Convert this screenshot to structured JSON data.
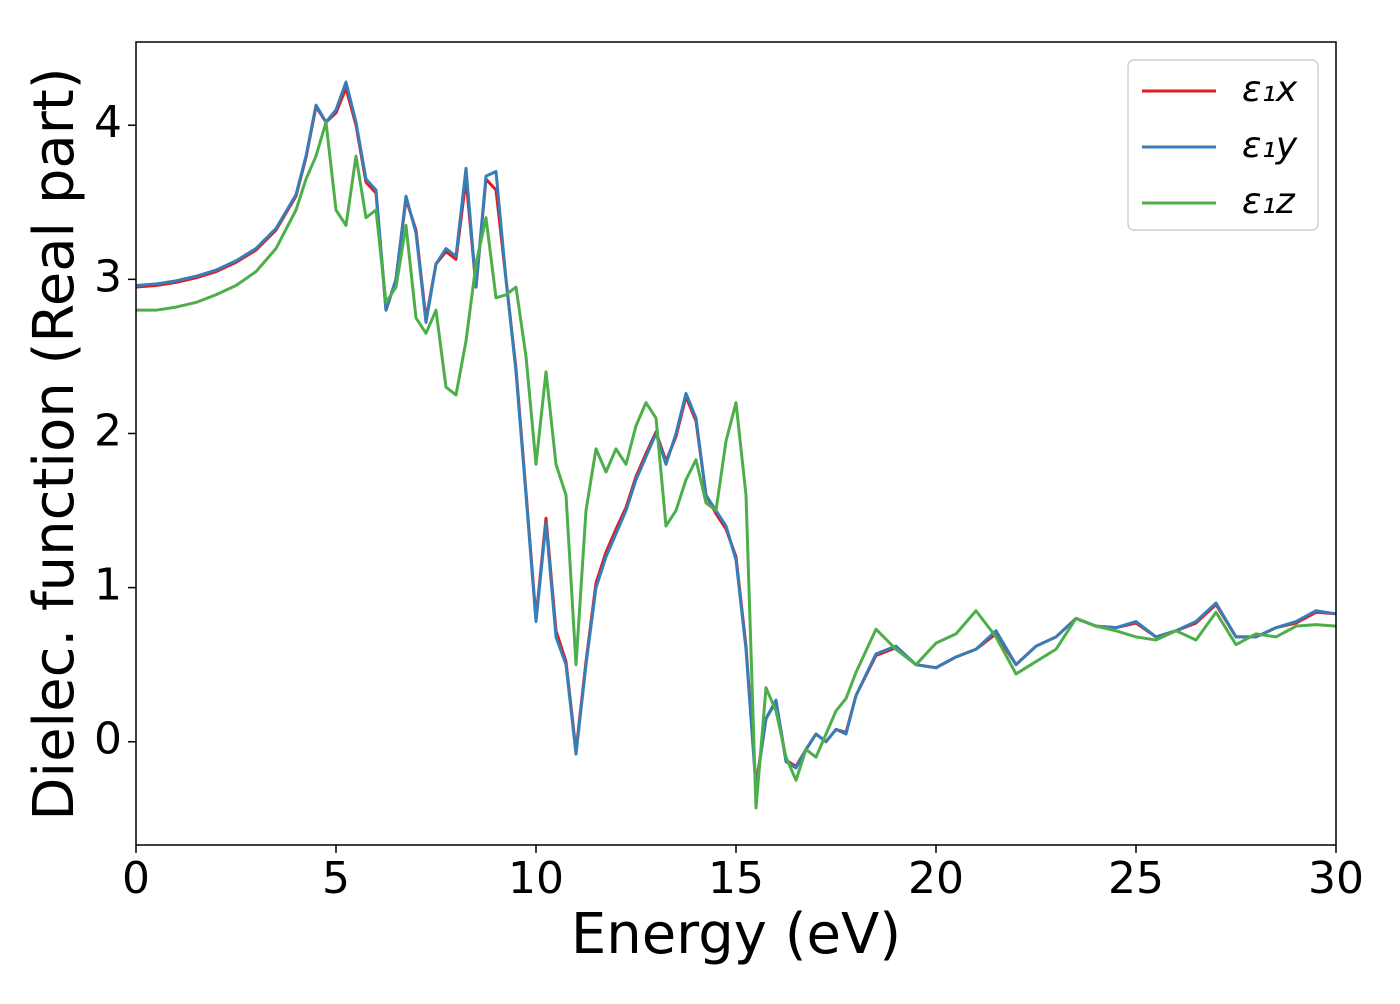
{
  "chart_data": {
    "type": "line",
    "xlabel": "Energy (eV)",
    "ylabel": "Dielec. function (Real part)",
    "xlim": [
      0,
      30
    ],
    "ylim": [
      -0.67,
      4.54
    ],
    "xticks": [
      0,
      5,
      10,
      15,
      20,
      25,
      30
    ],
    "yticks": [
      0,
      1,
      2,
      3,
      4
    ],
    "legend": "upper right",
    "x": [
      0,
      0.5,
      1,
      1.5,
      2,
      2.5,
      3,
      3.5,
      4,
      4.25,
      4.5,
      4.75,
      5,
      5.25,
      5.5,
      5.75,
      6,
      6.25,
      6.5,
      6.75,
      7,
      7.25,
      7.5,
      7.75,
      8,
      8.25,
      8.5,
      8.75,
      9,
      9.25,
      9.5,
      9.75,
      10,
      10.25,
      10.5,
      10.75,
      11,
      11.25,
      11.5,
      11.75,
      12,
      12.25,
      12.5,
      12.75,
      13,
      13.25,
      13.5,
      13.75,
      14,
      14.25,
      14.5,
      14.75,
      15,
      15.25,
      15.5,
      15.75,
      16,
      16.25,
      16.5,
      16.75,
      17,
      17.25,
      17.5,
      17.75,
      18,
      18.5,
      19,
      19.5,
      20,
      20.5,
      21,
      21.5,
      22,
      22.5,
      23,
      23.5,
      24,
      24.5,
      25,
      25.5,
      26,
      26.5,
      27,
      27.5,
      28,
      28.5,
      29,
      29.5,
      30
    ],
    "series": [
      {
        "name": "ε₁x",
        "color": "#e41a1c",
        "values": [
          2.95,
          2.96,
          2.98,
          3.01,
          3.05,
          3.11,
          3.19,
          3.32,
          3.54,
          3.79,
          4.12,
          4.02,
          4.08,
          4.24,
          4.0,
          3.63,
          3.56,
          2.8,
          3.0,
          3.52,
          3.32,
          2.74,
          3.1,
          3.18,
          3.13,
          3.65,
          2.95,
          3.65,
          3.58,
          3.0,
          2.42,
          1.62,
          0.8,
          1.45,
          0.72,
          0.52,
          -0.06,
          0.52,
          1.03,
          1.23,
          1.38,
          1.52,
          1.72,
          1.87,
          2.01,
          1.82,
          1.98,
          2.24,
          2.08,
          1.6,
          1.48,
          1.38,
          1.2,
          0.62,
          -0.28,
          0.15,
          0.26,
          -0.12,
          -0.16,
          -0.05,
          0.05,
          0.0,
          0.08,
          0.06,
          0.3,
          0.56,
          0.61,
          0.5,
          0.48,
          0.55,
          0.6,
          0.7,
          0.5,
          0.62,
          0.68,
          0.8,
          0.75,
          0.74,
          0.77,
          0.68,
          0.72,
          0.77,
          0.89,
          0.68,
          0.68,
          0.74,
          0.77,
          0.84,
          0.83
        ]
      },
      {
        "name": "ε₁y",
        "color": "#377eb8",
        "values": [
          2.96,
          2.97,
          2.99,
          3.02,
          3.06,
          3.12,
          3.2,
          3.33,
          3.55,
          3.8,
          4.13,
          4.02,
          4.1,
          4.28,
          4.02,
          3.65,
          3.58,
          2.8,
          3.0,
          3.54,
          3.3,
          2.72,
          3.1,
          3.2,
          3.15,
          3.72,
          2.95,
          3.67,
          3.7,
          3.0,
          2.4,
          1.6,
          0.78,
          1.42,
          0.68,
          0.5,
          -0.08,
          0.5,
          1.0,
          1.2,
          1.35,
          1.5,
          1.7,
          1.85,
          2.0,
          1.8,
          2.0,
          2.26,
          2.1,
          1.6,
          1.5,
          1.4,
          1.18,
          0.6,
          -0.3,
          0.15,
          0.27,
          -0.13,
          -0.17,
          -0.05,
          0.05,
          0.0,
          0.08,
          0.05,
          0.3,
          0.57,
          0.62,
          0.5,
          0.48,
          0.55,
          0.6,
          0.72,
          0.5,
          0.62,
          0.68,
          0.8,
          0.75,
          0.74,
          0.78,
          0.68,
          0.72,
          0.78,
          0.9,
          0.68,
          0.68,
          0.74,
          0.78,
          0.85,
          0.83
        ]
      },
      {
        "name": "ε₁z",
        "color": "#4daf4a",
        "values": [
          2.8,
          2.8,
          2.82,
          2.85,
          2.9,
          2.96,
          3.05,
          3.2,
          3.45,
          3.65,
          3.8,
          4.02,
          3.45,
          3.35,
          3.8,
          3.4,
          3.45,
          2.85,
          2.95,
          3.35,
          2.75,
          2.65,
          2.8,
          2.3,
          2.25,
          2.6,
          3.1,
          3.4,
          2.88,
          2.9,
          2.95,
          2.5,
          1.8,
          2.4,
          1.8,
          1.6,
          0.5,
          1.5,
          1.9,
          1.75,
          1.9,
          1.8,
          2.05,
          2.2,
          2.1,
          1.4,
          1.5,
          1.7,
          1.83,
          1.55,
          1.5,
          1.95,
          2.2,
          1.6,
          -0.43,
          0.35,
          0.2,
          -0.1,
          -0.25,
          -0.05,
          -0.1,
          0.05,
          0.2,
          0.28,
          0.45,
          0.73,
          0.6,
          0.5,
          0.64,
          0.7,
          0.85,
          0.68,
          0.44,
          0.52,
          0.6,
          0.8,
          0.75,
          0.72,
          0.68,
          0.66,
          0.72,
          0.66,
          0.84,
          0.63,
          0.7,
          0.68,
          0.75,
          0.76,
          0.75
        ]
      }
    ]
  }
}
